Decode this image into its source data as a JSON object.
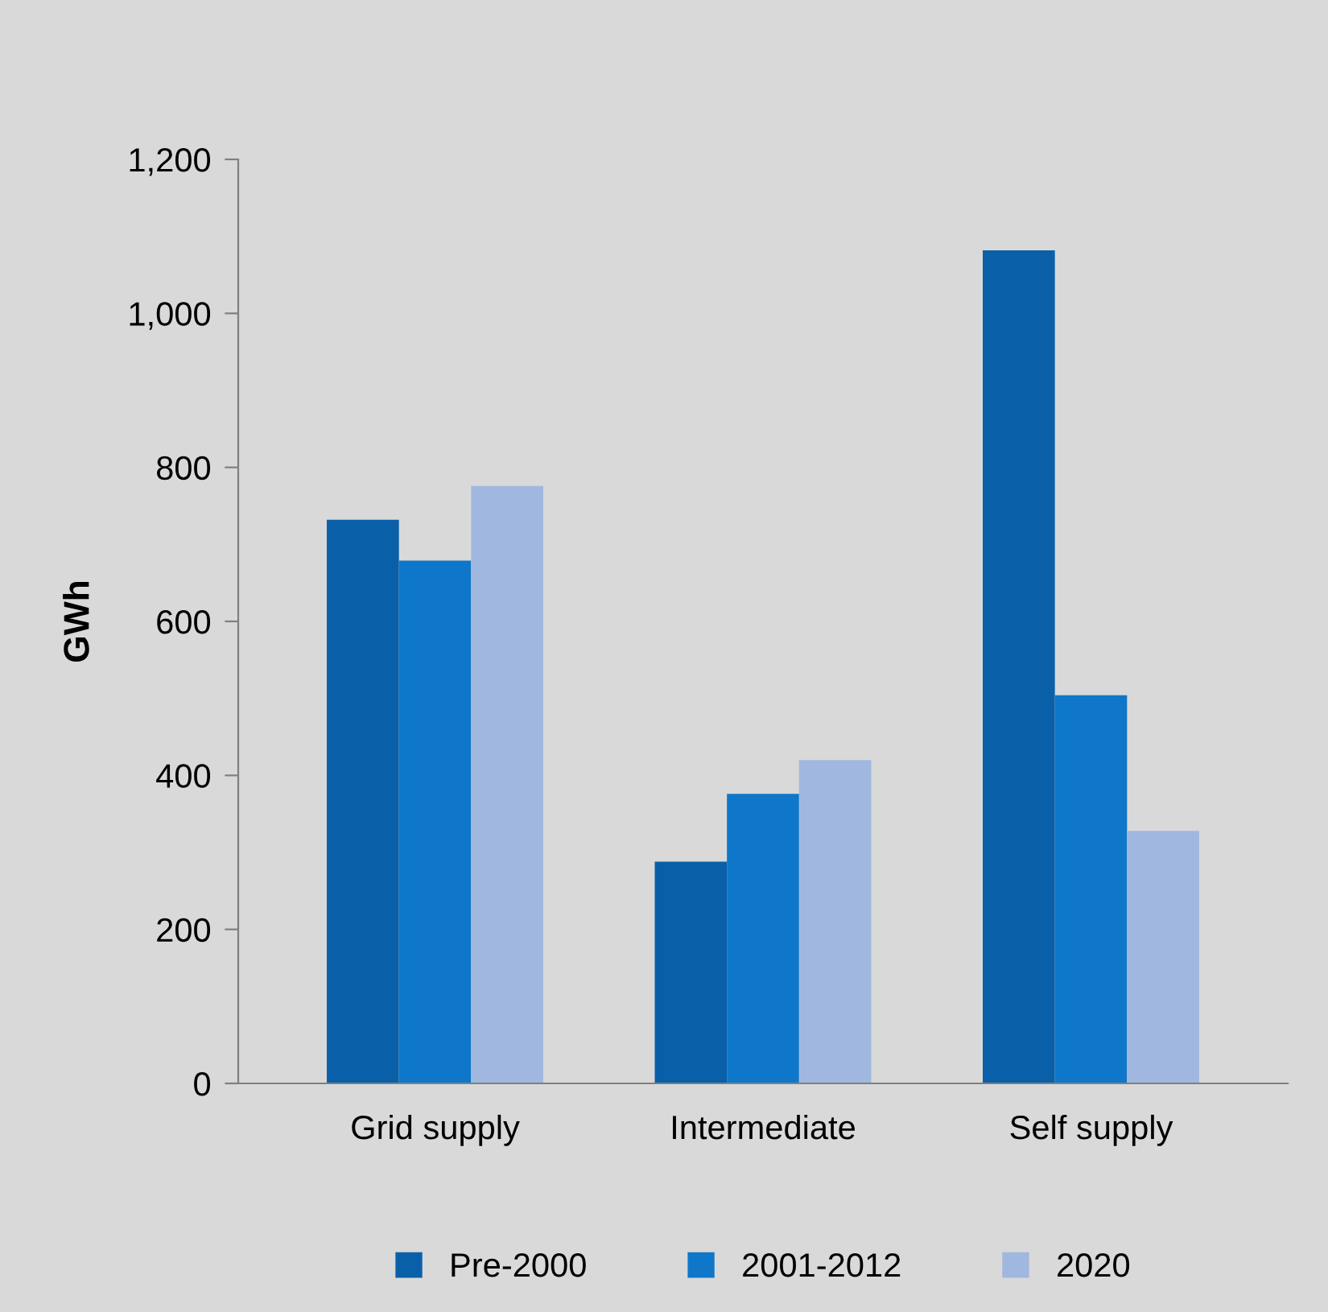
{
  "chart_data": {
    "type": "bar",
    "ylabel": "GWh",
    "categories": [
      "Grid supply",
      "Intermediate",
      "Self supply"
    ],
    "series": [
      {
        "name": "Pre-2000",
        "color": "#0a60a8",
        "values": [
          732,
          288,
          1082
        ]
      },
      {
        "name": "2001-2012",
        "color": "#0e77c9",
        "values": [
          679,
          376,
          504
        ]
      },
      {
        "name": "2020",
        "color": "#a0b8df",
        "values": [
          776,
          420,
          328
        ]
      }
    ],
    "ylim": [
      0,
      1200
    ],
    "yticks": [
      {
        "value": 0,
        "label": "0"
      },
      {
        "value": 200,
        "label": "200"
      },
      {
        "value": 400,
        "label": "400"
      },
      {
        "value": 600,
        "label": "600"
      },
      {
        "value": 800,
        "label": "800"
      },
      {
        "value": 1000,
        "label": "1,000"
      },
      {
        "value": 1200,
        "label": "1,200"
      }
    ],
    "grid": false,
    "legend": "bottom"
  }
}
